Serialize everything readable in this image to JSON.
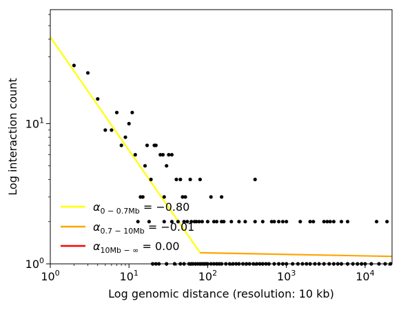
{
  "chart_data": {
    "type": "scatter",
    "xlabel": "Log genomic distance (resolution: 10 kb)",
    "ylabel": "Log interaction count",
    "x_scale": "log",
    "y_scale": "log",
    "xlim": [
      1,
      22000
    ],
    "ylim": [
      1,
      65
    ],
    "x_ticks": [
      {
        "value": 1,
        "base": "10",
        "exp": "0"
      },
      {
        "value": 10,
        "base": "10",
        "exp": "1"
      },
      {
        "value": 100,
        "base": "10",
        "exp": "2"
      },
      {
        "value": 1000,
        "base": "10",
        "exp": "3"
      },
      {
        "value": 10000,
        "base": "10",
        "exp": "4"
      }
    ],
    "y_ticks": [
      {
        "value": 1,
        "base": "10",
        "exp": "0"
      },
      {
        "value": 10,
        "base": "10",
        "exp": "1"
      }
    ],
    "points_color": "#000000",
    "points": [
      [
        2,
        26
      ],
      [
        3,
        23
      ],
      [
        4,
        15
      ],
      [
        5,
        9
      ],
      [
        6,
        9
      ],
      [
        7,
        12
      ],
      [
        8,
        7
      ],
      [
        9,
        8
      ],
      [
        10,
        10
      ],
      [
        11,
        12
      ],
      [
        12,
        6
      ],
      [
        14,
        3
      ],
      [
        15,
        3
      ],
      [
        16,
        5
      ],
      [
        17,
        7
      ],
      [
        19,
        4
      ],
      [
        21,
        7
      ],
      [
        22,
        7
      ],
      [
        25,
        6
      ],
      [
        27,
        6
      ],
      [
        28,
        3
      ],
      [
        30,
        5
      ],
      [
        32,
        6
      ],
      [
        35,
        6
      ],
      [
        40,
        4
      ],
      [
        45,
        4
      ],
      [
        48,
        3
      ],
      [
        52,
        3
      ],
      [
        60,
        4
      ],
      [
        80,
        4
      ],
      [
        110,
        3
      ],
      [
        150,
        3
      ],
      [
        400,
        4
      ],
      [
        13,
        2
      ],
      [
        18,
        2
      ],
      [
        28,
        2
      ],
      [
        35,
        2
      ],
      [
        42,
        2
      ],
      [
        50,
        2
      ],
      [
        55,
        2
      ],
      [
        62,
        2
      ],
      [
        68,
        2
      ],
      [
        72,
        2
      ],
      [
        78,
        2
      ],
      [
        85,
        2
      ],
      [
        100,
        2
      ],
      [
        120,
        2
      ],
      [
        130,
        2
      ],
      [
        150,
        2
      ],
      [
        160,
        2
      ],
      [
        200,
        2
      ],
      [
        250,
        2
      ],
      [
        300,
        2
      ],
      [
        400,
        2
      ],
      [
        500,
        2
      ],
      [
        650,
        2
      ],
      [
        700,
        2
      ],
      [
        800,
        2
      ],
      [
        900,
        2
      ],
      [
        1000,
        2
      ],
      [
        1500,
        2
      ],
      [
        2000,
        2
      ],
      [
        2200,
        2
      ],
      [
        3000,
        2
      ],
      [
        3300,
        2
      ],
      [
        3600,
        2
      ],
      [
        4000,
        2
      ],
      [
        5000,
        2
      ],
      [
        6000,
        2
      ],
      [
        14000,
        2
      ],
      [
        19000,
        2
      ],
      [
        20,
        1
      ],
      [
        22,
        1
      ],
      [
        24,
        1
      ],
      [
        30,
        1
      ],
      [
        38,
        1
      ],
      [
        45,
        1
      ],
      [
        50,
        1
      ],
      [
        58,
        1
      ],
      [
        62,
        1
      ],
      [
        65,
        1
      ],
      [
        70,
        1
      ],
      [
        75,
        1
      ],
      [
        80,
        1
      ],
      [
        85,
        1
      ],
      [
        90,
        1
      ],
      [
        95,
        1
      ],
      [
        100,
        1
      ],
      [
        110,
        1
      ],
      [
        120,
        1
      ],
      [
        130,
        1
      ],
      [
        140,
        1
      ],
      [
        150,
        1
      ],
      [
        170,
        1
      ],
      [
        190,
        1
      ],
      [
        210,
        1
      ],
      [
        230,
        1
      ],
      [
        250,
        1
      ],
      [
        280,
        1
      ],
      [
        310,
        1
      ],
      [
        340,
        1
      ],
      [
        380,
        1
      ],
      [
        420,
        1
      ],
      [
        460,
        1
      ],
      [
        500,
        1
      ],
      [
        550,
        1
      ],
      [
        600,
        1
      ],
      [
        700,
        1
      ],
      [
        800,
        1
      ],
      [
        900,
        1
      ],
      [
        1000,
        1
      ],
      [
        1200,
        1
      ],
      [
        1400,
        1
      ],
      [
        1600,
        1
      ],
      [
        1800,
        1
      ],
      [
        2000,
        1
      ],
      [
        2300,
        1
      ],
      [
        2600,
        1
      ],
      [
        3000,
        1
      ],
      [
        3500,
        1
      ],
      [
        4000,
        1
      ],
      [
        4500,
        1
      ],
      [
        5000,
        1
      ],
      [
        6000,
        1
      ],
      [
        7000,
        1
      ],
      [
        8000,
        1
      ],
      [
        9000,
        1
      ],
      [
        10000,
        1
      ],
      [
        12000,
        1
      ],
      [
        15000,
        1
      ],
      [
        18000,
        1
      ],
      [
        21000,
        1
      ]
    ],
    "series": [
      {
        "label_base": "α",
        "label_sub": "0 − 0.7Mb",
        "label_value": " = −0.80",
        "color": "#ffff00",
        "x": [
          1,
          80
        ],
        "y": [
          41.5,
          1.2
        ]
      },
      {
        "label_base": "α",
        "label_sub": "0.7 − 10Mb",
        "label_value": " = −0.01",
        "color": "#ffa500",
        "x": [
          80,
          22000
        ],
        "y": [
          1.2,
          1.13
        ]
      },
      {
        "label_base": "α",
        "label_sub": "10Mb − ∞",
        "label_value": " = 0.00",
        "color": "#ff0000",
        "x": [],
        "y": []
      }
    ],
    "legend_position": "lower-left",
    "grid": false
  }
}
